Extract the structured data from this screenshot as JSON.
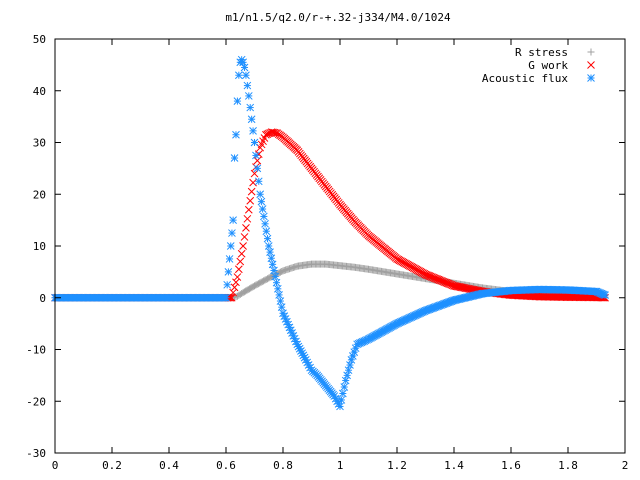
{
  "chart_data": {
    "type": "scatter",
    "title": "m1/n1.5/q2.0/r-+.32-j334/M4.0/1024",
    "xlabel": "",
    "ylabel": "",
    "xlim": [
      0,
      2
    ],
    "ylim": [
      -30,
      50
    ],
    "x_ticks": [
      "0",
      "0.2",
      "0.4",
      "0.6",
      "0.8",
      "1",
      "1.2",
      "1.4",
      "1.6",
      "1.8",
      "2"
    ],
    "y_ticks": [
      "-30",
      "-20",
      "-10",
      "0",
      "10",
      "20",
      "30",
      "40",
      "50"
    ],
    "grid": false,
    "legend_position": "top-right",
    "series": [
      {
        "name": "R stress",
        "marker": "plus",
        "color": "#a0a0a0",
        "x": [
          0.0,
          0.2,
          0.4,
          0.6,
          0.62,
          0.64,
          0.66,
          0.7,
          0.75,
          0.8,
          0.85,
          0.9,
          0.95,
          1.0,
          1.05,
          1.1,
          1.2,
          1.3,
          1.4,
          1.5,
          1.6,
          1.7,
          1.8,
          1.9,
          1.93
        ],
        "y": [
          0,
          0,
          0,
          0,
          0,
          0.3,
          1.0,
          2.3,
          3.8,
          5.2,
          6.1,
          6.5,
          6.5,
          6.2,
          5.9,
          5.5,
          4.6,
          3.7,
          2.8,
          1.9,
          1.2,
          0.7,
          0.3,
          0.1,
          0.1
        ]
      },
      {
        "name": "G work",
        "marker": "cross",
        "color": "#ff0000",
        "x": [
          0.0,
          0.2,
          0.4,
          0.6,
          0.62,
          0.64,
          0.66,
          0.68,
          0.7,
          0.72,
          0.74,
          0.76,
          0.78,
          0.8,
          0.85,
          0.9,
          0.95,
          1.0,
          1.05,
          1.1,
          1.2,
          1.3,
          1.4,
          1.5,
          1.6,
          1.7,
          1.8,
          1.9,
          1.93
        ],
        "y": [
          0,
          0,
          0,
          0,
          0,
          4,
          10,
          17,
          24,
          29,
          31.5,
          32,
          31.8,
          31,
          28.5,
          25,
          21.5,
          18,
          14.8,
          12,
          7.5,
          4.5,
          2.3,
          1.2,
          0.5,
          0.2,
          0.1,
          0.05,
          0
        ]
      },
      {
        "name": "Acoustic flux",
        "marker": "star",
        "color": "#1e90ff",
        "x": [
          0.0,
          0.2,
          0.4,
          0.6,
          0.625,
          0.63,
          0.635,
          0.64,
          0.645,
          0.65,
          0.655,
          0.66,
          0.665,
          0.67,
          0.68,
          0.7,
          0.72,
          0.75,
          0.8,
          0.85,
          0.88,
          0.9,
          0.92,
          0.95,
          0.98,
          1.0,
          1.02,
          1.04,
          1.06,
          1.08,
          1.1,
          1.2,
          1.3,
          1.4,
          1.5,
          1.6,
          1.7,
          1.8,
          1.9,
          1.93
        ],
        "y": [
          0,
          0,
          0,
          0,
          15,
          27,
          31.5,
          38,
          43,
          45.5,
          46,
          45.5,
          44.5,
          43,
          39,
          30,
          20,
          10,
          -3,
          -9,
          -12,
          -14,
          -15,
          -17,
          -19,
          -21,
          -16,
          -12,
          -9,
          -8.5,
          -8,
          -5,
          -2.5,
          -0.5,
          0.8,
          1.4,
          1.6,
          1.5,
          1.2,
          0.5
        ]
      }
    ]
  }
}
